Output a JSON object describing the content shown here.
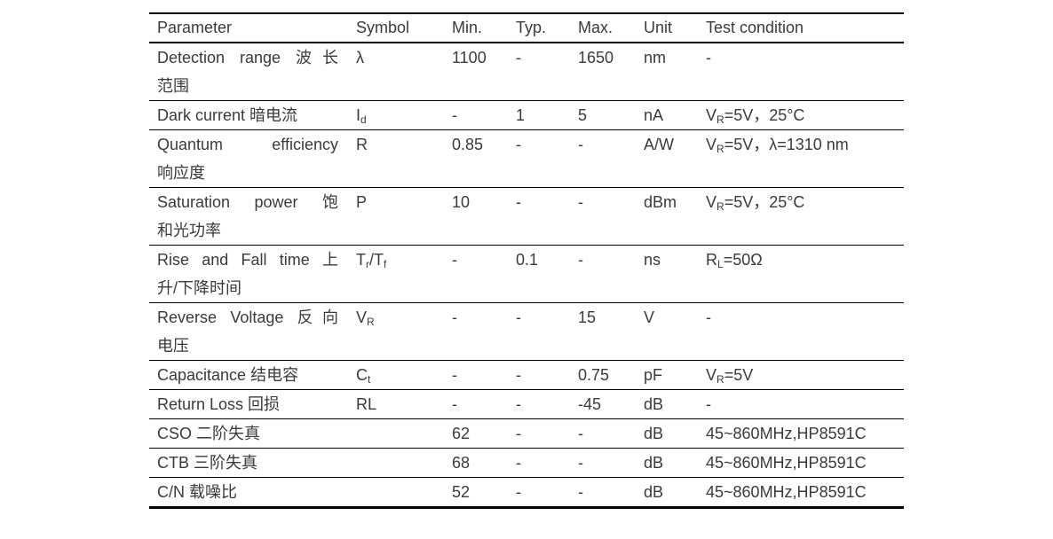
{
  "colors": {
    "background": "#ffffff",
    "text": "#3a3a3a",
    "rule": "#000000"
  },
  "table": {
    "columns": [
      "Parameter",
      "Symbol",
      "Min.",
      "Typ.",
      "Max.",
      "Unit",
      "Test condition"
    ],
    "rows": [
      {
        "parameter": [
          "Detection range 波长",
          "范围"
        ],
        "symbol": [
          {
            "t": "λ"
          }
        ],
        "min": "1100",
        "typ": "-",
        "max": "1650",
        "unit": "nm",
        "test": [
          {
            "t": "-"
          }
        ]
      },
      {
        "parameter": [
          "Dark current 暗电流"
        ],
        "symbol": [
          {
            "t": "I"
          },
          {
            "sub": "d"
          }
        ],
        "min": "-",
        "typ": "1",
        "max": "5",
        "unit": "nA",
        "test": [
          {
            "t": "V"
          },
          {
            "sub": "R"
          },
          {
            "t": "=5V，25°C"
          }
        ]
      },
      {
        "parameter": [
          "Quantum efficiency",
          "响应度"
        ],
        "symbol": [
          {
            "t": "R"
          }
        ],
        "min": "0.85",
        "typ": "-",
        "max": "-",
        "unit": "A/W",
        "test": [
          {
            "t": "V"
          },
          {
            "sub": "R"
          },
          {
            "t": "=5V，λ=1310 nm"
          }
        ]
      },
      {
        "parameter": [
          "Saturation power 饱",
          "和光功率"
        ],
        "symbol": [
          {
            "t": "P"
          }
        ],
        "min": "10",
        "typ": "-",
        "max": "-",
        "unit": "dBm",
        "test": [
          {
            "t": "V"
          },
          {
            "sub": "R"
          },
          {
            "t": "=5V，25°C"
          }
        ]
      },
      {
        "parameter": [
          "Rise and Fall time 上",
          "升/下降时间"
        ],
        "symbol": [
          {
            "t": "T"
          },
          {
            "sub": "r"
          },
          {
            "t": "/T"
          },
          {
            "sub": "f"
          }
        ],
        "min": "-",
        "typ": "0.1",
        "max": "-",
        "unit": "ns",
        "test": [
          {
            "t": "R"
          },
          {
            "sub": "L"
          },
          {
            "t": "=50Ω"
          }
        ]
      },
      {
        "parameter": [
          "Reverse Voltage 反向",
          "电压"
        ],
        "symbol": [
          {
            "t": "V"
          },
          {
            "sub": "R"
          }
        ],
        "min": "-",
        "typ": "-",
        "max": "15",
        "unit": "V",
        "test": [
          {
            "t": "-"
          }
        ]
      },
      {
        "parameter": [
          "Capacitance 结电容"
        ],
        "symbol": [
          {
            "t": "C"
          },
          {
            "sub": "t"
          }
        ],
        "min": "-",
        "typ": "-",
        "max": "0.75",
        "unit": "pF",
        "test": [
          {
            "t": "V"
          },
          {
            "sub": "R"
          },
          {
            "t": "=5V"
          }
        ]
      },
      {
        "parameter": [
          "Return Loss 回损"
        ],
        "symbol": [
          {
            "t": "RL"
          }
        ],
        "min": "-",
        "typ": "-",
        "max": "-45",
        "unit": "dB",
        "test": [
          {
            "t": "-"
          }
        ]
      },
      {
        "parameter": [
          "CSO 二阶失真"
        ],
        "symbol": [],
        "min": "62",
        "typ": "-",
        "max": "-",
        "unit": "dB",
        "test": [
          {
            "t": "45~860MHz,HP8591C"
          }
        ]
      },
      {
        "parameter": [
          "CTB 三阶失真"
        ],
        "symbol": [],
        "min": "68",
        "typ": "-",
        "max": "-",
        "unit": "dB",
        "test": [
          {
            "t": "45~860MHz,HP8591C"
          }
        ]
      },
      {
        "parameter": [
          "C/N 载噪比"
        ],
        "symbol": [],
        "min": "52",
        "typ": "-",
        "max": "-",
        "unit": "dB",
        "test": [
          {
            "t": "45~860MHz,HP8591C"
          }
        ]
      }
    ]
  }
}
